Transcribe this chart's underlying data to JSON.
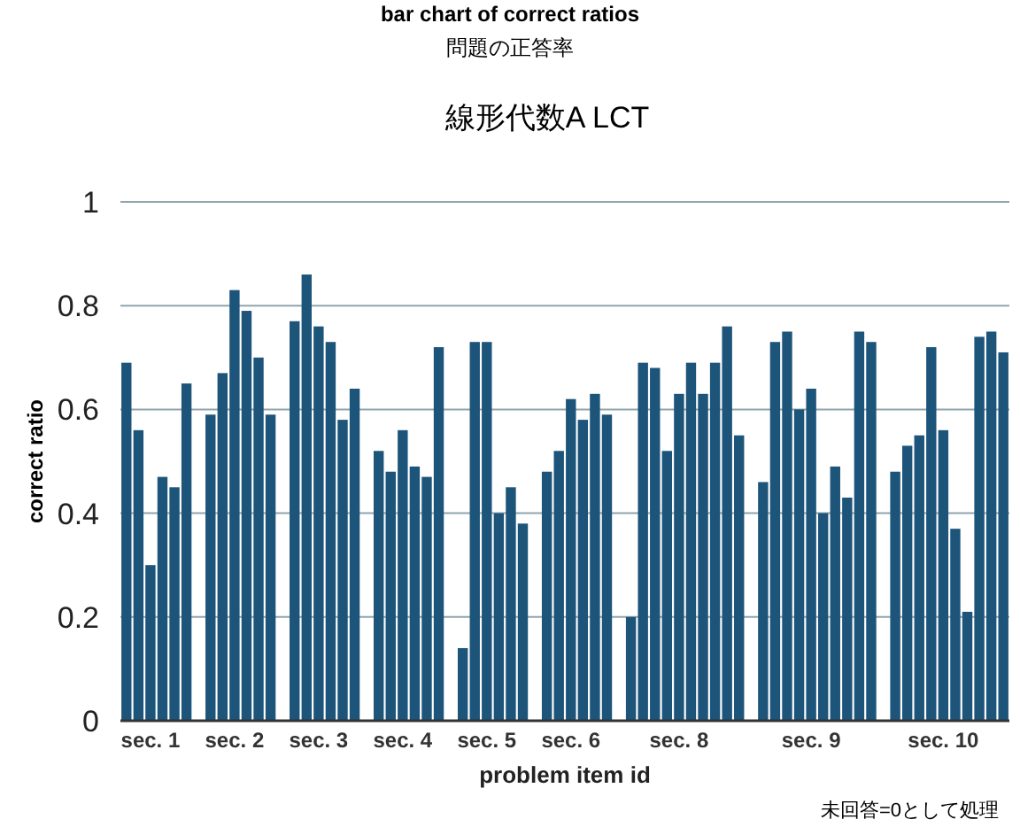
{
  "chart_data": {
    "type": "bar",
    "title": "bar chart of correct ratios",
    "subtitle": "問題の正答率",
    "annotations": [
      "線形代数A LCT",
      "未回答=0として処理"
    ],
    "xlabel": "problem item id",
    "ylabel": "correct ratio",
    "categories": [
      null,
      null,
      "sec. 1",
      null,
      null,
      null,
      null,
      null,
      null,
      "sec. 2",
      null,
      null,
      null,
      null,
      null,
      null,
      "sec. 3",
      null,
      null,
      null,
      null,
      null,
      null,
      "sec. 4",
      null,
      null,
      null,
      null,
      null,
      null,
      "sec. 5",
      null,
      null,
      null,
      null,
      null,
      null,
      "sec. 6",
      null,
      null,
      null,
      null,
      null,
      null,
      null,
      null,
      "sec. 8",
      null,
      null,
      null,
      null,
      null,
      null,
      null,
      null,
      null,
      null,
      "sec. 9",
      null,
      null,
      null,
      null,
      null,
      null,
      null,
      null,
      null,
      null,
      "sec. 10",
      null,
      null,
      null,
      null,
      null
    ],
    "values": [
      0.69,
      0.56,
      0.3,
      0.47,
      0.45,
      0.65,
      null,
      0.59,
      0.67,
      0.83,
      0.79,
      0.7,
      0.59,
      null,
      0.77,
      0.86,
      0.76,
      0.73,
      0.58,
      0.64,
      null,
      0.52,
      0.48,
      0.56,
      0.49,
      0.47,
      0.72,
      null,
      0.14,
      0.73,
      0.73,
      0.4,
      0.45,
      0.38,
      null,
      0.48,
      0.52,
      0.62,
      0.58,
      0.63,
      0.59,
      null,
      0.2,
      0.69,
      0.68,
      0.52,
      0.63,
      0.69,
      0.63,
      0.69,
      0.76,
      0.55,
      null,
      0.46,
      0.73,
      0.75,
      0.6,
      0.64,
      0.4,
      0.49,
      0.43,
      0.75,
      0.73,
      null,
      0.48,
      0.53,
      0.55,
      0.72,
      0.56,
      0.37,
      0.21,
      0.74,
      0.75,
      0.71
    ],
    "color": "#1d5479",
    "ylim": [
      0,
      1
    ],
    "yticks": [
      0,
      0.2,
      0.4,
      0.6,
      0.8,
      1
    ],
    "grid": "y"
  }
}
